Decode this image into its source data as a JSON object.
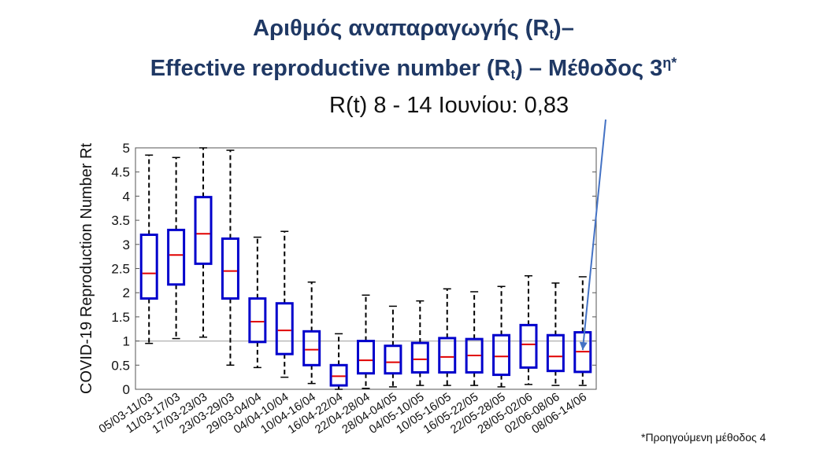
{
  "title": {
    "line1_prefix": "Αριθμός αναπαραγωγής (R",
    "line1_sub": "t",
    "line1_suffix": ")–",
    "line2_prefix": "Effective reproductive number (R",
    "line2_sub": "t",
    "line2_mid": ") – Μέθοδος 3",
    "line2_sup": "η*"
  },
  "annotation": "R(t) 8 - 14 Ιουνίου: 0,83",
  "footnote": "*Προηγούμενη  μέθοδος 4",
  "colors": {
    "title": "#1f3864",
    "box": "#0000cc",
    "median": "#e00000",
    "whisker": "#000000",
    "reference_line": "#b0b0b0",
    "arrow": "#4472c4"
  },
  "chart_data": {
    "type": "boxplot",
    "ylabel": "COVID-19 Reproduction Number Rt",
    "ylim": [
      0,
      5
    ],
    "yticks": [
      "0",
      "0.5",
      "1",
      "1.5",
      "2",
      "2.5",
      "3",
      "3.5",
      "4",
      "4.5",
      "5"
    ],
    "reference_line": 1,
    "categories": [
      "05/03-11/03",
      "11/03-17/03",
      "17/03-23/03",
      "23/03-29/03",
      "29/03-04/04",
      "04/04-10/04",
      "10/04-16/04",
      "16/04-22/04",
      "22/04-28/04",
      "28/04-04/05",
      "04/05-10/05",
      "10/05-16/05",
      "16/05-22/05",
      "22/05-28/05",
      "28/05-02/06",
      "02/06-08/06",
      "08/06-14/06"
    ],
    "boxes": [
      {
        "whisker_low": 0.95,
        "q1": 1.88,
        "median": 2.4,
        "q3": 3.2,
        "whisker_high": 4.85
      },
      {
        "whisker_low": 1.05,
        "q1": 2.17,
        "median": 2.78,
        "q3": 3.3,
        "whisker_high": 4.8
      },
      {
        "whisker_low": 1.08,
        "q1": 2.6,
        "median": 3.22,
        "q3": 3.98,
        "whisker_high": 5.0
      },
      {
        "whisker_low": 0.5,
        "q1": 1.88,
        "median": 2.45,
        "q3": 3.12,
        "whisker_high": 4.95
      },
      {
        "whisker_low": 0.45,
        "q1": 0.98,
        "median": 1.4,
        "q3": 1.88,
        "whisker_high": 3.15
      },
      {
        "whisker_low": 0.25,
        "q1": 0.73,
        "median": 1.22,
        "q3": 1.78,
        "whisker_high": 3.27
      },
      {
        "whisker_low": 0.12,
        "q1": 0.5,
        "median": 0.82,
        "q3": 1.2,
        "whisker_high": 2.22
      },
      {
        "whisker_low": 0.0,
        "q1": 0.08,
        "median": 0.27,
        "q3": 0.5,
        "whisker_high": 1.15
      },
      {
        "whisker_low": 0.02,
        "q1": 0.33,
        "median": 0.6,
        "q3": 1.0,
        "whisker_high": 1.95
      },
      {
        "whisker_low": 0.05,
        "q1": 0.33,
        "median": 0.56,
        "q3": 0.9,
        "whisker_high": 1.72
      },
      {
        "whisker_low": 0.08,
        "q1": 0.35,
        "median": 0.62,
        "q3": 0.96,
        "whisker_high": 1.83
      },
      {
        "whisker_low": 0.08,
        "q1": 0.35,
        "median": 0.67,
        "q3": 1.06,
        "whisker_high": 2.08
      },
      {
        "whisker_low": 0.08,
        "q1": 0.35,
        "median": 0.7,
        "q3": 1.04,
        "whisker_high": 2.02
      },
      {
        "whisker_low": 0.05,
        "q1": 0.3,
        "median": 0.68,
        "q3": 1.12,
        "whisker_high": 2.13
      },
      {
        "whisker_low": 0.1,
        "q1": 0.45,
        "median": 0.93,
        "q3": 1.33,
        "whisker_high": 2.35
      },
      {
        "whisker_low": 0.08,
        "q1": 0.38,
        "median": 0.68,
        "q3": 1.12,
        "whisker_high": 2.2
      },
      {
        "whisker_low": 0.08,
        "q1": 0.36,
        "median": 0.78,
        "q3": 1.18,
        "whisker_high": 2.33
      }
    ],
    "grid": false,
    "legend": "none"
  }
}
